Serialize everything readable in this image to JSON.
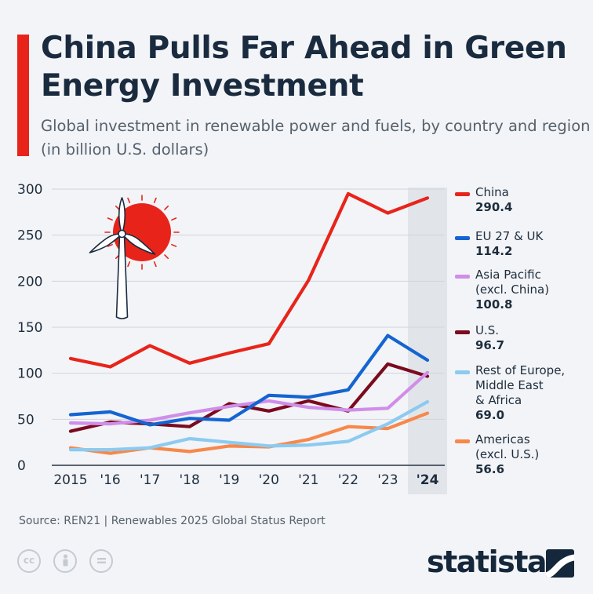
{
  "title": "China Pulls Far Ahead in Green Energy Investment",
  "subtitle": "Global investment in renewable power and fuels, by country and region (in billion U.S. dollars)",
  "source": "Source: REN21 | Renewables 2025 Global Status Report",
  "brand": "statista",
  "license_icons": [
    "cc-icon",
    "attribution-icon",
    "no-derivatives-icon"
  ],
  "illustration": [
    "sun-icon",
    "wind-turbine-icon"
  ],
  "colors": {
    "accent": "#e8241a",
    "highlight_band": "#e1e5ea",
    "text": "#1e2d3d"
  },
  "chart_data": {
    "type": "line",
    "x": [
      "2015",
      "'16",
      "'17",
      "'18",
      "'19",
      "'20",
      "'21",
      "'22",
      "'23",
      "'24"
    ],
    "highlighted_x": "'24",
    "ylim": [
      0,
      300
    ],
    "yticks": [
      0,
      50,
      100,
      150,
      200,
      250,
      300
    ],
    "grid": true,
    "legend_position": "right",
    "series": [
      {
        "name": "China",
        "color": "#e8241a",
        "latest": "290.4",
        "values": [
          116,
          107,
          130,
          111,
          122,
          132,
          201,
          295,
          274,
          290.4
        ]
      },
      {
        "name": "EU 27 & UK",
        "color": "#1464d2",
        "latest": "114.2",
        "values": [
          55,
          58,
          44,
          51,
          49,
          76,
          74,
          82,
          141,
          114.2
        ]
      },
      {
        "name": "Asia Pacific\n(excl. China)",
        "color": "#d08ee8",
        "latest": "100.8",
        "values": [
          46,
          45,
          49,
          57,
          64,
          70,
          63,
          60,
          62,
          100.8
        ]
      },
      {
        "name": "U.S.",
        "color": "#7b0a1e",
        "latest": "96.7",
        "values": [
          37,
          47,
          45,
          42,
          67,
          59,
          70,
          59,
          110,
          96.7
        ]
      },
      {
        "name": "Rest of Europe,\nMiddle East\n& Africa",
        "color": "#8ccaf0",
        "latest": "69.0",
        "values": [
          17,
          17,
          19,
          29,
          25,
          21,
          22,
          26,
          45,
          69.0
        ]
      },
      {
        "name": "Americas\n(excl. U.S.)",
        "color": "#f7884a",
        "latest": "56.6",
        "values": [
          19,
          13,
          19,
          15,
          21,
          20,
          28,
          42,
          40,
          56.6
        ]
      }
    ]
  }
}
